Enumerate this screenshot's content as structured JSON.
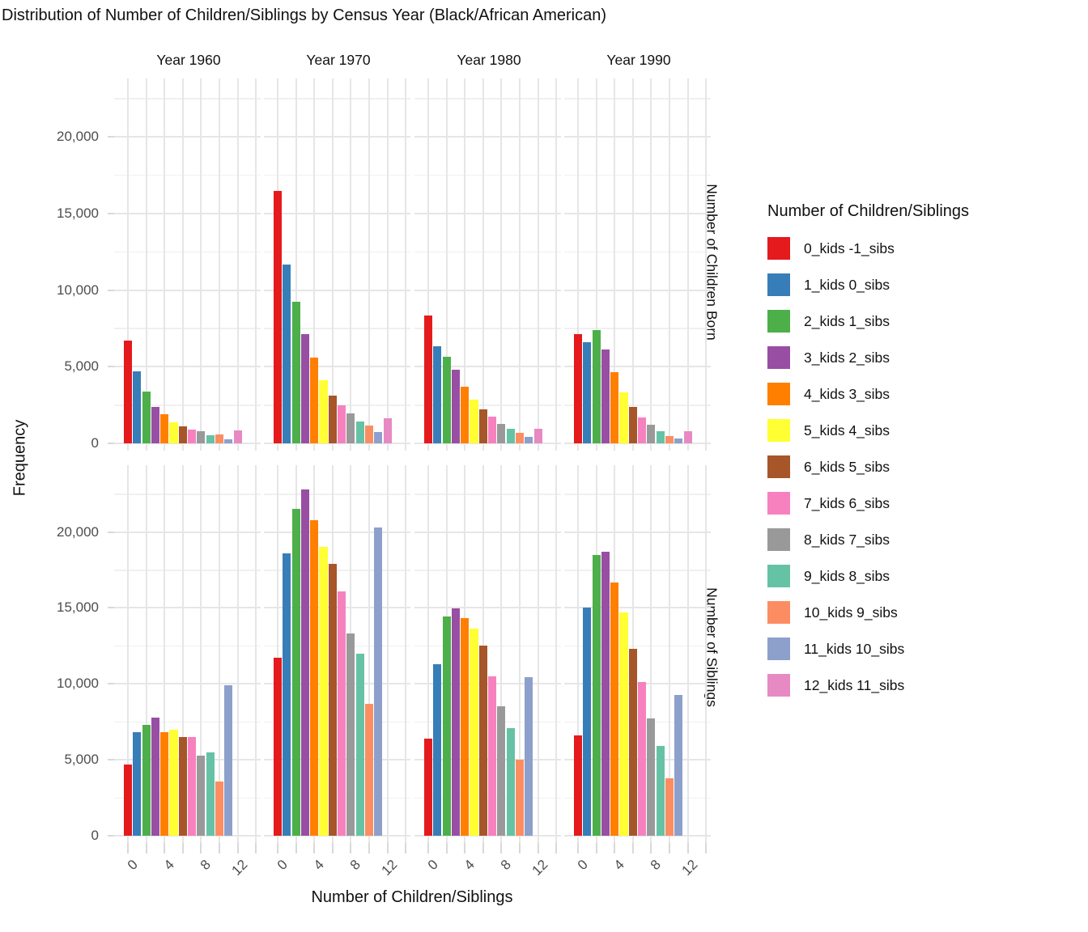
{
  "chart_data": {
    "type": "bar",
    "title": "Distribution of Number of Children/Siblings by Census Year (Black/African American)",
    "xlabel": "Number of Children/Siblings",
    "ylabel": "Frequency",
    "facet_columns": [
      "Year 1960",
      "Year 1970",
      "Year 1980",
      "Year 1990"
    ],
    "facet_rows": [
      "Number of Children Born",
      "Number of Siblings"
    ],
    "x_axis": {
      "tick_labels": [
        "0",
        "4",
        "8",
        "12"
      ],
      "tick_values": [
        0,
        4,
        8,
        12
      ],
      "gridline_values": [
        0,
        2,
        4,
        6,
        8,
        10,
        12,
        14
      ],
      "categories": [
        0,
        1,
        2,
        3,
        4,
        5,
        6,
        7,
        8,
        9,
        10,
        11,
        12
      ]
    },
    "y_axis": {
      "tick_labels": [
        "0",
        "5,000",
        "10,000",
        "15,000",
        "20,000"
      ],
      "tick_values": [
        0,
        5000,
        10000,
        15000,
        20000
      ],
      "minor_values": [
        2500,
        7500,
        12500,
        17500,
        22500
      ],
      "ylim": [
        0,
        23800
      ],
      "grid": true
    },
    "legend": {
      "title": "Number of Children/Siblings",
      "position": "right",
      "entries": [
        {
          "label": "0_kids -1_sibs",
          "color": "#E41A1C"
        },
        {
          "label": "1_kids 0_sibs",
          "color": "#377EB8"
        },
        {
          "label": "2_kids 1_sibs",
          "color": "#4DAF4A"
        },
        {
          "label": "3_kids 2_sibs",
          "color": "#984EA3"
        },
        {
          "label": "4_kids 3_sibs",
          "color": "#FF7F00"
        },
        {
          "label": "5_kids 4_sibs",
          "color": "#FFFF33"
        },
        {
          "label": "6_kids 5_sibs",
          "color": "#A65628"
        },
        {
          "label": "7_kids 6_sibs",
          "color": "#F781BF"
        },
        {
          "label": "8_kids 7_sibs",
          "color": "#999999"
        },
        {
          "label": "9_kids 8_sibs",
          "color": "#66C2A5"
        },
        {
          "label": "10_kids 9_sibs",
          "color": "#FC8D62"
        },
        {
          "label": "11_kids 10_sibs",
          "color": "#8DA0CB"
        },
        {
          "label": "12_kids 11_sibs",
          "color": "#E78AC3"
        }
      ]
    },
    "panels": [
      {
        "facet_row": "Number of Children Born",
        "facet_col": "Year 1960",
        "values": [
          6700,
          4700,
          3400,
          2400,
          1900,
          1350,
          1100,
          900,
          800,
          530,
          570,
          270,
          850
        ]
      },
      {
        "facet_row": "Number of Children Born",
        "facet_col": "Year 1970",
        "values": [
          16450,
          11650,
          9250,
          7100,
          5600,
          4100,
          3100,
          2500,
          1950,
          1400,
          1150,
          750,
          1650
        ]
      },
      {
        "facet_row": "Number of Children Born",
        "facet_col": "Year 1980",
        "values": [
          8350,
          6350,
          5650,
          4800,
          3700,
          2850,
          2200,
          1750,
          1270,
          950,
          700,
          430,
          950
        ]
      },
      {
        "facet_row": "Number of Children Born",
        "facet_col": "Year 1990",
        "values": [
          7100,
          6600,
          7400,
          6100,
          4650,
          3300,
          2400,
          1700,
          1200,
          800,
          500,
          300,
          800
        ]
      },
      {
        "facet_row": "Number of Siblings",
        "facet_col": "Year 1960",
        "values": [
          4700,
          6800,
          7300,
          7800,
          6800,
          7000,
          6500,
          6500,
          5300,
          5500,
          3550,
          9900,
          null
        ]
      },
      {
        "facet_row": "Number of Siblings",
        "facet_col": "Year 1970",
        "values": [
          11700,
          18600,
          21500,
          22800,
          20800,
          19000,
          17900,
          16100,
          13300,
          12000,
          8700,
          20300,
          null
        ]
      },
      {
        "facet_row": "Number of Siblings",
        "facet_col": "Year 1980",
        "values": [
          6400,
          11300,
          14450,
          14950,
          14350,
          13650,
          12500,
          10500,
          8500,
          7100,
          5000,
          10450,
          null
        ]
      },
      {
        "facet_row": "Number of Siblings",
        "facet_col": "Year 1990",
        "values": [
          6600,
          15000,
          18500,
          18700,
          16700,
          14700,
          12300,
          10100,
          7700,
          5900,
          3800,
          9250,
          null
        ]
      }
    ]
  }
}
